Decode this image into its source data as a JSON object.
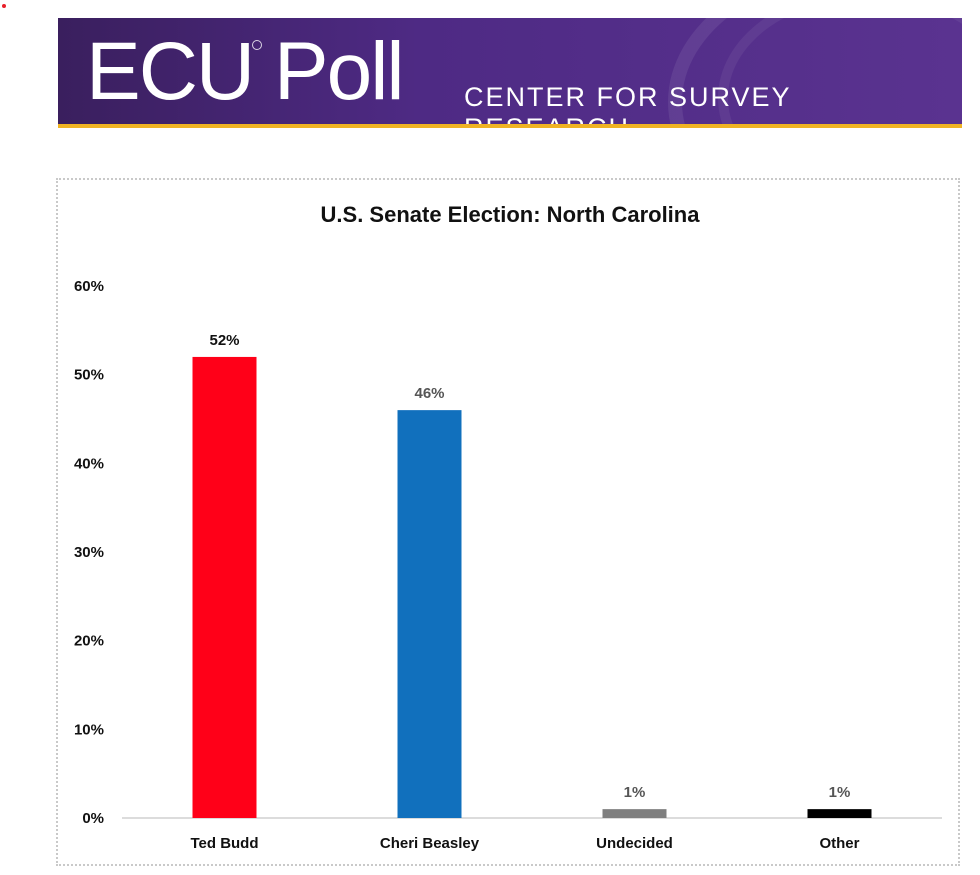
{
  "header": {
    "logo_text": "ECU Poll",
    "subtitle": "CENTER FOR SURVEY RESEARCH"
  },
  "chart_data": {
    "type": "bar",
    "title": "U.S. Senate Election:  North Carolina",
    "categories": [
      "Ted Budd",
      "Cheri Beasley",
      "Undecided",
      "Other"
    ],
    "values": [
      52,
      46,
      1,
      1
    ],
    "value_labels": [
      "52%",
      "46%",
      "1%",
      "1%"
    ],
    "colors": [
      "#ff0018",
      "#1170bd",
      "#7f7f7f",
      "#000000"
    ],
    "label_colors": [
      "#111111",
      "#555555",
      "#555555",
      "#555555"
    ],
    "yticks": [
      "0%",
      "10%",
      "20%",
      "30%",
      "40%",
      "50%",
      "60%"
    ],
    "ylim": [
      0,
      60
    ],
    "xlabel": "",
    "ylabel": "",
    "grid": false
  }
}
